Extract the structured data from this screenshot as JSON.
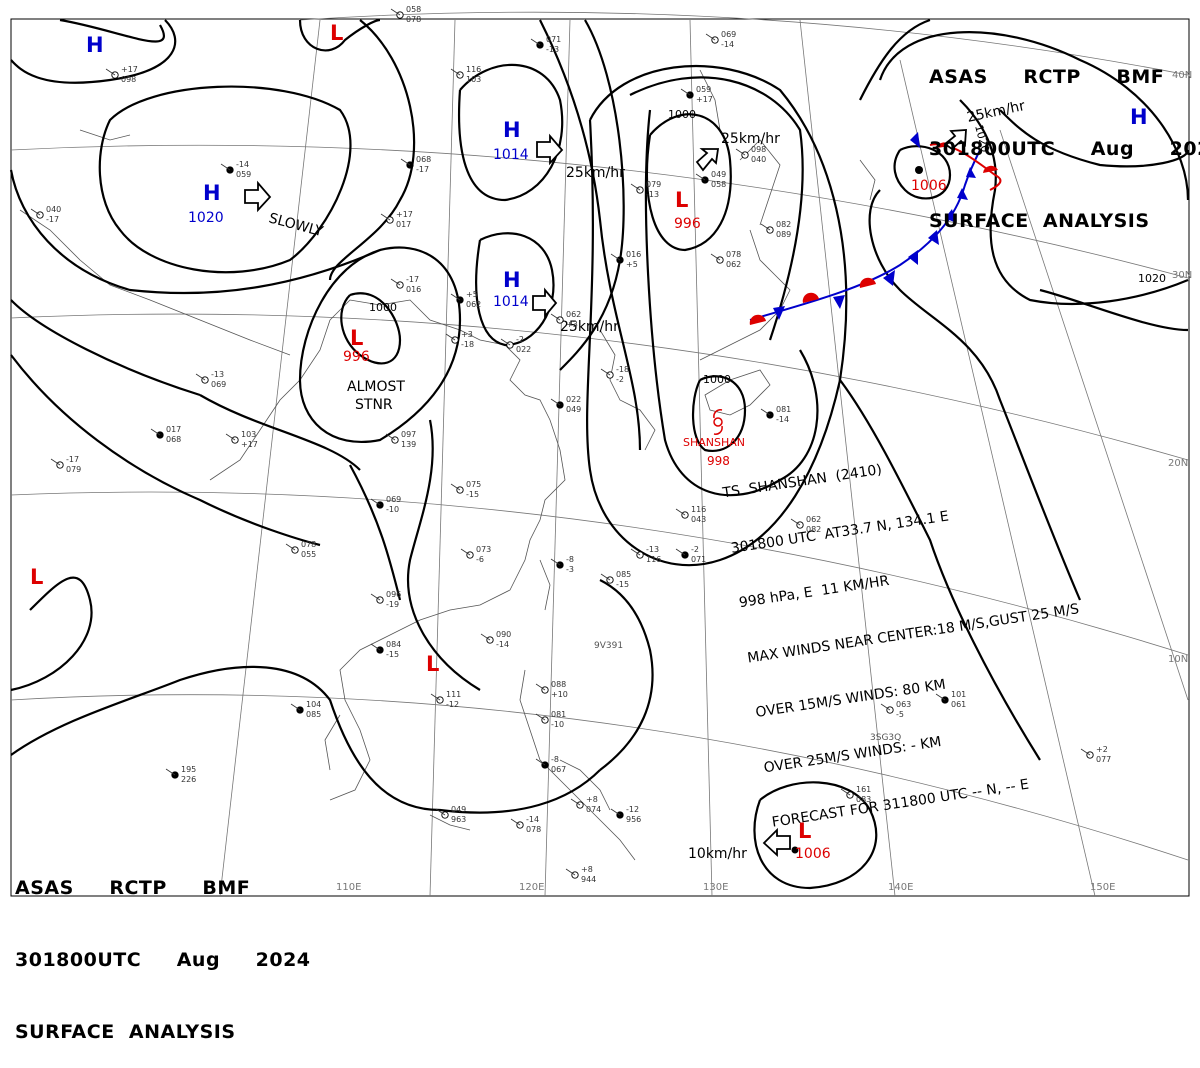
{
  "header": {
    "line1": "ASAS     RCTP     BMF",
    "line2": "301800UTC     Aug     2024",
    "line3": "SURFACE  ANALYSIS"
  },
  "storm_box": {
    "line1": "TS  SHANSHAN  (2410)",
    "line2": "301800 UTC  AT33.7 N, 134.1 E",
    "line3": "998 hPa, E  11 KM/HR",
    "line4": "MAX WINDS NEAR CENTER:18 M/S,GUST 25 M/S",
    "line5": "OVER 15M/S WINDS: 80 KM",
    "line6": "OVER 25M/S WINDS: - KM",
    "line7": "FORECAST FOR 311800 UTC -- N, -- E"
  },
  "pressure_centers": [
    {
      "kind": "H",
      "value": "1020",
      "color": "#0000cc"
    },
    {
      "kind": "H",
      "value": "1014",
      "color": "#0000cc"
    },
    {
      "kind": "H",
      "value": "1014",
      "color": "#0000cc"
    },
    {
      "kind": "H",
      "value": "",
      "color": "#0000cc"
    },
    {
      "kind": "H",
      "value": "",
      "color": "#0000cc"
    },
    {
      "kind": "L",
      "value": "996",
      "color": "#dd0000"
    },
    {
      "kind": "L",
      "value": "996",
      "color": "#dd0000"
    },
    {
      "kind": "L",
      "value": "1006",
      "color": "#dd0000"
    },
    {
      "kind": "L",
      "value": "1006",
      "color": "#dd0000"
    },
    {
      "kind": "L",
      "value": "",
      "color": "#dd0000"
    },
    {
      "kind": "L",
      "value": "",
      "color": "#dd0000"
    },
    {
      "kind": "L",
      "value": "",
      "color": "#dd0000"
    }
  ],
  "typhoon_label": {
    "name": "SHANSHAN",
    "pressure": "998",
    "color": "#dd0000"
  },
  "motion_labels": [
    "SLOWLY",
    "25km/hr",
    "25km/hr",
    "25km/hr",
    "25km/hr",
    "10km/hr",
    "ALMOST",
    "STNR"
  ],
  "isobar_labels": [
    "1000",
    "1000",
    "1000",
    "1020",
    "1020"
  ],
  "lat_labels": [
    "40N",
    "30N",
    "20N",
    "10N"
  ],
  "lon_labels": [
    "110E",
    "120E",
    "130E",
    "140E",
    "150E"
  ],
  "ship_ids": [
    "9V391",
    "3SG3Q"
  ],
  "station_samples": [
    "071",
    "-13",
    "116",
    "103",
    "+17",
    "017",
    "068",
    "-17",
    "079",
    "-13",
    "069",
    "-14",
    "059",
    "+17",
    "098",
    "040",
    "-17",
    "016",
    "+5",
    "062",
    "+3",
    "-18",
    "-2",
    "022",
    "049",
    "058",
    "078",
    "062",
    "082",
    "089",
    "081",
    "-14",
    "097",
    "139",
    "075",
    "-15",
    "069",
    "-10",
    "073",
    "-6",
    "078",
    "055",
    "-8",
    "-3",
    "085",
    "-15",
    "096",
    "-19",
    "084",
    "-15",
    "090",
    "-14",
    "111",
    "-12",
    "104",
    "085",
    "088",
    "+10",
    "081",
    "-10",
    "-8",
    "067",
    "+8",
    "074",
    "-14",
    "078",
    "-12",
    "956",
    "+8",
    "944",
    "049",
    "963",
    "195",
    "226",
    "161",
    "083",
    "+2",
    "077",
    "101",
    "061",
    "063",
    "-5",
    "116",
    "043",
    "-2"
  ],
  "colors": {
    "isobar": "#000000",
    "high": "#0000cc",
    "low": "#dd0000",
    "cold_front": "#0000cc",
    "warm_front": "#dd0000",
    "grid": "#777777",
    "coast": "#555555"
  }
}
